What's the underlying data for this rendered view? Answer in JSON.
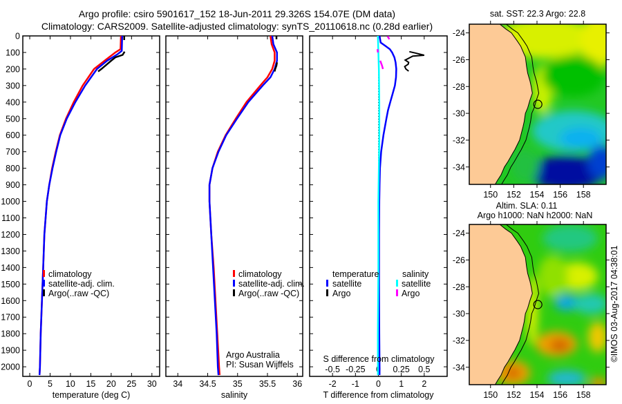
{
  "title": {
    "line1": "Argo profile: csiro 5901617_152 18-Jun-2011 29.326S 154.07E (DM data)",
    "line2": "Climatology: CARS2009. Satellite-adjusted climatology: synTS_20110618.nc (0.28d earlier)"
  },
  "colors": {
    "climatology": "#ff0000",
    "satellite": "#0000ff",
    "argo": "#000000",
    "sal_satellite": "#00ffff",
    "sal_argo": "#ff00ff",
    "land": "#fdca96"
  },
  "chart_data": [
    {
      "type": "line",
      "id": "temperature",
      "xlabel": "temperature (deg C)",
      "ylabel": "",
      "xlim": [
        -1.7,
        31.9
      ],
      "ylim": [
        0,
        2058
      ],
      "y_inverted": true,
      "xticks": [
        0,
        5,
        10,
        15,
        20,
        25,
        30
      ],
      "yticks": [
        0,
        100,
        200,
        300,
        400,
        500,
        600,
        700,
        800,
        900,
        1000,
        1100,
        1200,
        1300,
        1400,
        1500,
        1600,
        1700,
        1800,
        1900,
        2000
      ],
      "legend": [
        "climatology",
        "satellite-adj. clim.",
        "Argo(..raw -QC)"
      ],
      "series": [
        {
          "name": "climatology",
          "depth": [
            0,
            80,
            100,
            150,
            200,
            300,
            400,
            500,
            600,
            700,
            800,
            900,
            1000,
            1200,
            1400,
            1600,
            1800,
            2000,
            2050
          ],
          "values": [
            22.4,
            22.3,
            21.0,
            18.4,
            15.8,
            13.0,
            10.8,
            8.9,
            7.4,
            6.4,
            5.5,
            4.8,
            4.2,
            3.6,
            3.3,
            3.0,
            2.7,
            2.5,
            2.4
          ]
        },
        {
          "name": "satellite-adj. clim.",
          "depth": [
            0,
            90,
            110,
            150,
            200,
            300,
            400,
            500,
            600,
            700,
            800,
            900,
            1000,
            1200,
            1400,
            1600,
            1800,
            2000,
            2050
          ],
          "values": [
            22.7,
            22.6,
            21.6,
            19.0,
            16.5,
            13.6,
            11.2,
            9.1,
            7.5,
            6.5,
            5.6,
            4.8,
            4.2,
            3.6,
            3.3,
            3.0,
            2.7,
            2.5,
            2.4
          ]
        },
        {
          "name": "Argo(..raw -QC)",
          "depth": [
            2,
            25,
            null,
            95,
            115,
            130,
            150,
            175,
            200,
            215
          ],
          "values": [
            23.2,
            23.2,
            null,
            23.3,
            22.8,
            21.0,
            20.0,
            18.8,
            17.6,
            16.8
          ]
        }
      ]
    },
    {
      "type": "line",
      "id": "salinity",
      "xlabel": "salinity",
      "xlim": [
        33.8,
        36.09
      ],
      "ylim": [
        0,
        2058
      ],
      "y_inverted": true,
      "xticks": [
        34,
        34.5,
        35,
        35.5,
        36
      ],
      "legend": [
        "climatology",
        "satellite-adj. clim.",
        "Argo(..raw -QC)"
      ],
      "annotation": [
        "Argo Australia",
        "PI: Susan Wijffels"
      ],
      "series": [
        {
          "name": "climatology",
          "depth": [
            0,
            50,
            100,
            150,
            200,
            250,
            300,
            400,
            500,
            600,
            700,
            800,
            900,
            1000,
            1200,
            1400,
            1600,
            1800,
            2000,
            2050
          ],
          "values": [
            35.55,
            35.57,
            35.62,
            35.62,
            35.58,
            35.5,
            35.38,
            35.15,
            34.97,
            34.8,
            34.67,
            34.58,
            34.53,
            34.53,
            34.56,
            34.6,
            34.63,
            34.66,
            34.69,
            34.7
          ]
        },
        {
          "name": "satellite-adj. clim.",
          "depth": [
            0,
            50,
            100,
            150,
            200,
            250,
            300,
            400,
            500,
            600,
            700,
            800,
            900,
            1000,
            1200,
            1400,
            1600,
            1800,
            2000,
            2050
          ],
          "values": [
            35.58,
            35.6,
            35.66,
            35.66,
            35.62,
            35.55,
            35.42,
            35.18,
            34.99,
            34.81,
            34.68,
            34.58,
            34.53,
            34.53,
            34.56,
            34.59,
            34.62,
            34.65,
            34.67,
            34.68
          ]
        },
        {
          "name": "Argo(..raw -QC)",
          "depth": [
            2,
            20,
            null,
            160,
            180,
            200,
            215
          ],
          "values": [
            35.65,
            35.65,
            null,
            35.66,
            35.65,
            35.63,
            35.62
          ]
        }
      ]
    },
    {
      "type": "line",
      "id": "difference",
      "xlabel": "T difference from climatology",
      "x2label": "S difference from climatology",
      "xlim": [
        -3,
        3
      ],
      "x2lim": [
        -0.75,
        0.75
      ],
      "ylim": [
        0,
        2058
      ],
      "y_inverted": true,
      "xticks": [
        -2,
        -1,
        0,
        1,
        2
      ],
      "xticklabels": [
        "-2",
        "-1",
        "0",
        "1",
        "2"
      ],
      "x2ticks": [
        -0.5,
        -0.25,
        0,
        0.25,
        0.5
      ],
      "x2ticklabels": [
        "-0.5",
        "-0.25",
        "0",
        "0.25",
        "0.5"
      ],
      "legend": {
        "temperature_heading": "temperature",
        "salinity_heading": "salinity",
        "t_satellite": "satellite",
        "t_argo": "Argo",
        "s_satellite": "satellite",
        "s_argo": "Argo"
      },
      "series": [
        {
          "name": "temperature satellite",
          "axis": "T",
          "depth": [
            0,
            40,
            60,
            80,
            100,
            130,
            160,
            200,
            250,
            300,
            350,
            400,
            450,
            500,
            600,
            700,
            800,
            900,
            1000,
            1200,
            1500,
            1800,
            2000,
            2050
          ],
          "values": [
            0.05,
            0.1,
            0.3,
            0.5,
            0.6,
            0.7,
            0.75,
            0.78,
            0.77,
            0.72,
            0.62,
            0.52,
            0.42,
            0.35,
            0.22,
            0.12,
            0.07,
            0.05,
            0.04,
            0.03,
            0.03,
            0.04,
            0.05,
            0.05
          ]
        },
        {
          "name": "temperature Argo",
          "axis": "T",
          "depth": [
            95,
            103,
            117,
            122,
            146,
            160,
            171,
            185,
            200,
            213
          ],
          "values": [
            1.35,
            1.6,
            2.0,
            1.5,
            1.17,
            1.32,
            1.3,
            1.15,
            1.2,
            1.32
          ]
        },
        {
          "name": "salinity satellite",
          "axis": "S",
          "depth": [
            0,
            100,
            200,
            400,
            600,
            800,
            1000,
            1400,
            1800,
            2050
          ],
          "values": [
            -0.005,
            0.0,
            0.005,
            0.01,
            0.01,
            0.005,
            0.0,
            0.0,
            -0.005,
            -0.005
          ]
        },
        {
          "name": "salinity Argo",
          "axis": "S",
          "depth": [
            2,
            20,
            null,
            80,
            100,
            null,
            150,
            180,
            200
          ],
          "values": [
            0.1,
            0.12,
            null,
            -0.01,
            -0.005,
            null,
            0.02,
            0.04,
            0.05
          ]
        }
      ]
    },
    {
      "type": "heatmap",
      "id": "sst-map",
      "title": "sat. SST: 22.3 Argo: 22.8",
      "xlim": [
        148.17,
        159.95
      ],
      "ylim": [
        -35.3,
        -23.35
      ],
      "xticks": [
        150,
        152,
        154,
        156,
        158
      ],
      "yticks": [
        -24,
        -26,
        -28,
        -30,
        -32,
        -34
      ],
      "argo_position": {
        "lon": 154.07,
        "lat": -29.326
      }
    },
    {
      "type": "heatmap",
      "id": "sla-map",
      "title": "Altim. SLA: 0.11",
      "subtitle": "Argo h1000: NaN h2000: NaN",
      "xlim": [
        148.17,
        159.95
      ],
      "ylim": [
        -35.3,
        -23.35
      ],
      "xticks": [
        150,
        152,
        154,
        156,
        158
      ],
      "yticks": [
        -24,
        -26,
        -28,
        -30,
        -32,
        -34
      ],
      "argo_position": {
        "lon": 154.07,
        "lat": -29.326
      }
    }
  ],
  "credit": "©IMOS 03-Aug-2017 04:38:01"
}
